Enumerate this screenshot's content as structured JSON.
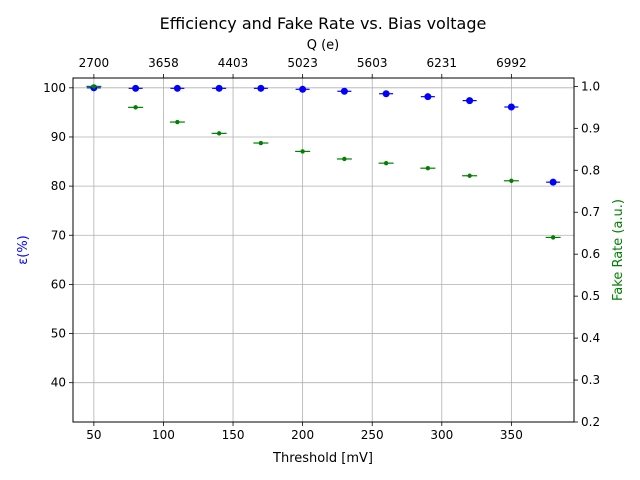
{
  "chart_data": {
    "type": "scatter",
    "title": "Efficiency and Fake Rate vs. Bias voltage",
    "xlabel": "Threshold [mV]",
    "ylabel": "ε(%)",
    "y2label": "Fake Rate (a.u.)",
    "x2label": "Q (e)",
    "xlim": [
      35,
      395
    ],
    "ylim": [
      32,
      102
    ],
    "y2lim": [
      0.2,
      1.02
    ],
    "x_ticks": [
      50,
      100,
      150,
      200,
      250,
      300,
      350
    ],
    "y_ticks": [
      40,
      50,
      60,
      70,
      80,
      90,
      100
    ],
    "y2_ticks": [
      0.2,
      0.3,
      0.4,
      0.5,
      0.6,
      0.7,
      0.8,
      0.9,
      1.0
    ],
    "x2_ticks": [
      {
        "x": 50,
        "label": "2700"
      },
      {
        "x": 100,
        "label": "3658"
      },
      {
        "x": 150,
        "label": "4403"
      },
      {
        "x": 200,
        "label": "5023"
      },
      {
        "x": 250,
        "label": "5603"
      },
      {
        "x": 300,
        "label": "6231"
      },
      {
        "x": 350,
        "label": "6992"
      }
    ],
    "grid": true,
    "series": [
      {
        "axis": "left",
        "color": "#0000ff",
        "marker": "circle",
        "x": [
          50,
          80,
          110,
          140,
          170,
          200,
          230,
          260,
          290,
          320,
          350,
          380
        ],
        "y": [
          100.0,
          99.9,
          99.9,
          99.9,
          99.9,
          99.7,
          99.3,
          98.8,
          98.2,
          97.4,
          96.1,
          80.8
        ]
      },
      {
        "axis": "right",
        "color": "#008000",
        "marker": "dot",
        "x": [
          50,
          80,
          110,
          140,
          170,
          200,
          230,
          260,
          290,
          320,
          350,
          380
        ],
        "y": [
          1.0,
          0.95,
          0.915,
          0.888,
          0.865,
          0.845,
          0.827,
          0.817,
          0.805,
          0.787,
          0.775,
          0.64
        ]
      }
    ]
  }
}
